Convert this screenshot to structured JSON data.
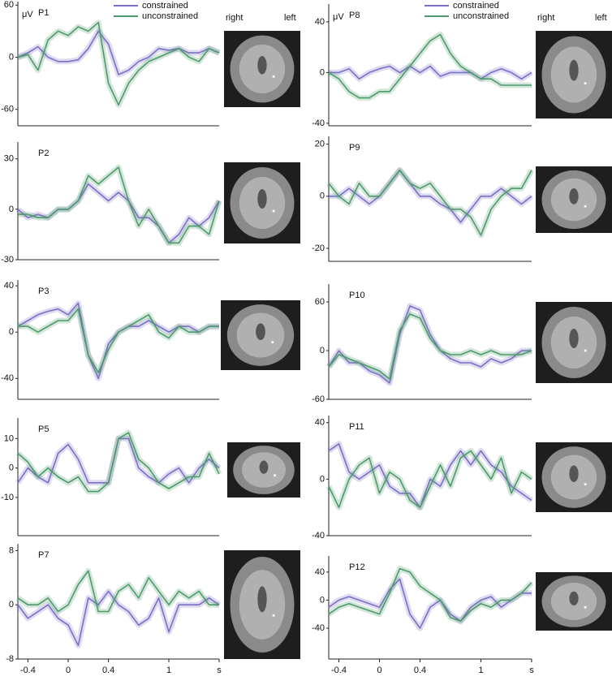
{
  "chart_data": [
    {
      "type": "line",
      "title": "P1",
      "ylabel": "μV",
      "xlim": [
        -0.5,
        1.5
      ],
      "ylim": [
        -79,
        64
      ],
      "yticks": [
        60,
        0,
        -60
      ],
      "x": [
        -0.5,
        -0.4,
        -0.3,
        -0.2,
        -0.1,
        0,
        0.1,
        0.2,
        0.3,
        0.4,
        0.5,
        0.6,
        0.7,
        0.8,
        0.9,
        1.0,
        1.1,
        1.2,
        1.3,
        1.4,
        1.5
      ],
      "series": [
        {
          "name": "constrained",
          "color": "#7a70c8",
          "values": [
            0,
            5,
            12,
            0,
            -5,
            -5,
            -3,
            10,
            30,
            15,
            -20,
            -15,
            -5,
            0,
            10,
            8,
            10,
            5,
            5,
            10,
            5
          ]
        },
        {
          "name": "unconstrained",
          "color": "#4f9a6c",
          "values": [
            0,
            3,
            -15,
            20,
            30,
            25,
            35,
            30,
            40,
            -30,
            -55,
            -30,
            -15,
            -5,
            0,
            5,
            10,
            0,
            -5,
            10,
            5
          ]
        }
      ]
    },
    {
      "type": "line",
      "title": "P2",
      "xlim": [
        -0.5,
        1.5
      ],
      "ylim": [
        -30,
        40
      ],
      "yticks": [
        30,
        0,
        -30
      ],
      "x": [
        -0.5,
        -0.4,
        -0.3,
        -0.2,
        -0.1,
        0,
        0.1,
        0.2,
        0.3,
        0.4,
        0.5,
        0.6,
        0.7,
        0.8,
        0.9,
        1.0,
        1.1,
        1.2,
        1.3,
        1.4,
        1.5
      ],
      "series": [
        {
          "color": "#7a70c8",
          "values": [
            0,
            -5,
            -3,
            -5,
            0,
            0,
            5,
            15,
            10,
            5,
            10,
            5,
            -5,
            -5,
            -10,
            -20,
            -15,
            -5,
            -10,
            -5,
            5
          ]
        },
        {
          "color": "#4f9a6c",
          "values": [
            -3,
            -3,
            -5,
            -5,
            0,
            0,
            5,
            20,
            15,
            20,
            25,
            5,
            -10,
            0,
            -10,
            -20,
            -20,
            -10,
            -10,
            -15,
            5
          ]
        }
      ]
    },
    {
      "type": "line",
      "title": "P3",
      "xlim": [
        -0.5,
        1.5
      ],
      "ylim": [
        -58,
        45
      ],
      "yticks": [
        40,
        0,
        -40
      ],
      "x": [
        -0.5,
        -0.4,
        -0.3,
        -0.2,
        -0.1,
        0,
        0.1,
        0.2,
        0.3,
        0.4,
        0.5,
        0.6,
        0.7,
        0.8,
        0.9,
        1.0,
        1.1,
        1.2,
        1.3,
        1.4,
        1.5
      ],
      "series": [
        {
          "color": "#7a70c8",
          "values": [
            5,
            10,
            15,
            18,
            20,
            15,
            25,
            -20,
            -40,
            -10,
            0,
            5,
            5,
            10,
            5,
            0,
            5,
            5,
            0,
            5,
            5
          ]
        },
        {
          "color": "#4f9a6c",
          "values": [
            5,
            5,
            0,
            5,
            10,
            10,
            20,
            -20,
            -35,
            -15,
            0,
            5,
            10,
            15,
            0,
            -5,
            5,
            0,
            0,
            5,
            5
          ]
        }
      ]
    },
    {
      "type": "line",
      "title": "P5",
      "xlim": [
        -0.5,
        1.5
      ],
      "ylim": [
        -23,
        17
      ],
      "yticks": [
        10,
        0,
        -10
      ],
      "x": [
        -0.5,
        -0.4,
        -0.3,
        -0.2,
        -0.1,
        0,
        0.1,
        0.2,
        0.3,
        0.4,
        0.5,
        0.6,
        0.7,
        0.8,
        0.9,
        1.0,
        1.1,
        1.2,
        1.3,
        1.4,
        1.5
      ],
      "series": [
        {
          "color": "#7a70c8",
          "values": [
            -5,
            0,
            -3,
            -5,
            5,
            8,
            3,
            -5,
            -5,
            -5,
            10,
            10,
            0,
            -3,
            -5,
            -2,
            0,
            -5,
            0,
            3,
            0
          ]
        },
        {
          "color": "#4f9a6c",
          "values": [
            5,
            2,
            -3,
            0,
            -3,
            -5,
            -3,
            -8,
            -8,
            -5,
            10,
            12,
            3,
            0,
            -5,
            -7,
            -5,
            -3,
            -3,
            5,
            -2
          ]
        }
      ]
    },
    {
      "type": "line",
      "title": "P7",
      "xlim": [
        -0.5,
        1.5
      ],
      "ylim": [
        -8,
        9
      ],
      "yticks": [
        8,
        0,
        -8
      ],
      "xticks": [
        -0.4,
        0,
        0.4,
        1,
        {
          "value": 1.5,
          "label": "s"
        }
      ],
      "x": [
        -0.5,
        -0.4,
        -0.3,
        -0.2,
        -0.1,
        0,
        0.1,
        0.2,
        0.3,
        0.4,
        0.5,
        0.6,
        0.7,
        0.8,
        0.9,
        1.0,
        1.1,
        1.2,
        1.3,
        1.4,
        1.5
      ],
      "series": [
        {
          "color": "#7a70c8",
          "values": [
            0,
            -2,
            -1,
            0,
            -2,
            -3,
            -6,
            1,
            0,
            2,
            0,
            -1,
            -3,
            -2,
            1,
            -4,
            0,
            0,
            0,
            1,
            0
          ]
        },
        {
          "color": "#4f9a6c",
          "values": [
            1,
            0,
            0,
            1,
            -1,
            0,
            3,
            5,
            -1,
            -1,
            2,
            3,
            1,
            4,
            2,
            0,
            2,
            1,
            2,
            0,
            0
          ]
        }
      ]
    },
    {
      "type": "line",
      "title": "P8",
      "ylabel": "μV",
      "xlim": [
        -0.5,
        1.5
      ],
      "ylim": [
        -42,
        54
      ],
      "yticks": [
        40,
        0,
        -40
      ],
      "x": [
        -0.5,
        -0.4,
        -0.3,
        -0.2,
        -0.1,
        0,
        0.1,
        0.2,
        0.3,
        0.4,
        0.5,
        0.6,
        0.7,
        0.8,
        0.9,
        1.0,
        1.1,
        1.2,
        1.3,
        1.4,
        1.5
      ],
      "series": [
        {
          "name": "constrained",
          "color": "#7a70c8",
          "values": [
            0,
            0,
            3,
            -5,
            0,
            3,
            5,
            0,
            5,
            0,
            5,
            -3,
            0,
            0,
            0,
            -5,
            0,
            3,
            0,
            -5,
            0
          ]
        },
        {
          "name": "unconstrained",
          "color": "#4f9a6c",
          "values": [
            0,
            -5,
            -15,
            -20,
            -20,
            -15,
            -15,
            -5,
            5,
            15,
            25,
            30,
            15,
            5,
            0,
            -5,
            -5,
            -10,
            -10,
            -10,
            -10
          ]
        }
      ]
    },
    {
      "type": "line",
      "title": "P9",
      "xlim": [
        -0.5,
        1.5
      ],
      "ylim": [
        -25,
        23
      ],
      "yticks": [
        20,
        0,
        -20
      ],
      "x": [
        -0.5,
        -0.4,
        -0.3,
        -0.2,
        -0.1,
        0,
        0.1,
        0.2,
        0.3,
        0.4,
        0.5,
        0.6,
        0.7,
        0.8,
        0.9,
        1.0,
        1.1,
        1.2,
        1.3,
        1.4,
        1.5
      ],
      "series": [
        {
          "color": "#7a70c8",
          "values": [
            0,
            0,
            3,
            0,
            -3,
            0,
            5,
            10,
            5,
            0,
            0,
            -3,
            -5,
            -10,
            -5,
            0,
            0,
            3,
            0,
            -3,
            0
          ]
        },
        {
          "color": "#4f9a6c",
          "values": [
            5,
            0,
            -3,
            5,
            0,
            0,
            5,
            10,
            5,
            3,
            5,
            0,
            -5,
            -5,
            -8,
            -15,
            -5,
            0,
            3,
            3,
            10
          ]
        }
      ]
    },
    {
      "type": "line",
      "title": "P10",
      "xlim": [
        -0.5,
        1.5
      ],
      "ylim": [
        -60,
        82
      ],
      "yticks": [
        60,
        0,
        -60
      ],
      "x": [
        -0.5,
        -0.4,
        -0.3,
        -0.2,
        -0.1,
        0,
        0.1,
        0.2,
        0.3,
        0.4,
        0.5,
        0.6,
        0.7,
        0.8,
        0.9,
        1.0,
        1.1,
        1.2,
        1.3,
        1.4,
        1.5
      ],
      "series": [
        {
          "color": "#7a70c8",
          "values": [
            -20,
            0,
            -15,
            -15,
            -25,
            -30,
            -40,
            20,
            55,
            50,
            20,
            0,
            -10,
            -15,
            -15,
            -20,
            -10,
            -15,
            -10,
            0,
            0
          ]
        },
        {
          "color": "#4f9a6c",
          "values": [
            -20,
            -5,
            -10,
            -15,
            -20,
            -25,
            -35,
            25,
            45,
            40,
            15,
            0,
            -5,
            -5,
            0,
            -5,
            0,
            -5,
            -5,
            -5,
            0
          ]
        }
      ]
    },
    {
      "type": "line",
      "title": "P11",
      "xlim": [
        -0.5,
        1.5
      ],
      "ylim": [
        -40,
        45
      ],
      "yticks": [
        40,
        0,
        -40
      ],
      "x": [
        -0.5,
        -0.4,
        -0.3,
        -0.2,
        -0.1,
        0,
        0.1,
        0.2,
        0.3,
        0.4,
        0.5,
        0.6,
        0.7,
        0.8,
        0.9,
        1.0,
        1.1,
        1.2,
        1.3,
        1.4,
        1.5
      ],
      "series": [
        {
          "color": "#7a70c8",
          "values": [
            20,
            25,
            5,
            0,
            5,
            10,
            -5,
            -10,
            -10,
            -20,
            0,
            -5,
            10,
            20,
            10,
            20,
            10,
            5,
            -5,
            -10,
            -15
          ]
        },
        {
          "color": "#4f9a6c",
          "values": [
            -5,
            -20,
            0,
            10,
            15,
            -10,
            5,
            0,
            -15,
            -20,
            -5,
            10,
            -5,
            15,
            20,
            10,
            0,
            15,
            -10,
            5,
            0
          ]
        }
      ]
    },
    {
      "type": "line",
      "title": "P12",
      "xlim": [
        -0.5,
        1.5
      ],
      "ylim": [
        -84,
        63
      ],
      "yticks": [
        40,
        0,
        -40
      ],
      "xticks": [
        -0.4,
        0,
        0.4,
        1,
        {
          "value": 1.5,
          "label": "s"
        }
      ],
      "x": [
        -0.5,
        -0.4,
        -0.3,
        -0.2,
        -0.1,
        0,
        0.1,
        0.2,
        0.3,
        0.4,
        0.5,
        0.6,
        0.7,
        0.8,
        0.9,
        1.0,
        1.1,
        1.2,
        1.3,
        1.4,
        1.5
      ],
      "series": [
        {
          "color": "#7a70c8",
          "values": [
            -10,
            0,
            5,
            0,
            -5,
            -10,
            15,
            30,
            -20,
            -40,
            -10,
            0,
            -20,
            -30,
            -10,
            0,
            5,
            -10,
            0,
            10,
            10
          ]
        },
        {
          "color": "#4f9a6c",
          "values": [
            -20,
            -10,
            -5,
            -10,
            -15,
            -20,
            10,
            45,
            40,
            20,
            10,
            0,
            -25,
            -30,
            -15,
            -5,
            -10,
            0,
            0,
            10,
            25
          ]
        }
      ]
    }
  ],
  "brain_labels": [
    [
      "right",
      "left"
    ],
    [
      "right",
      "left"
    ]
  ]
}
